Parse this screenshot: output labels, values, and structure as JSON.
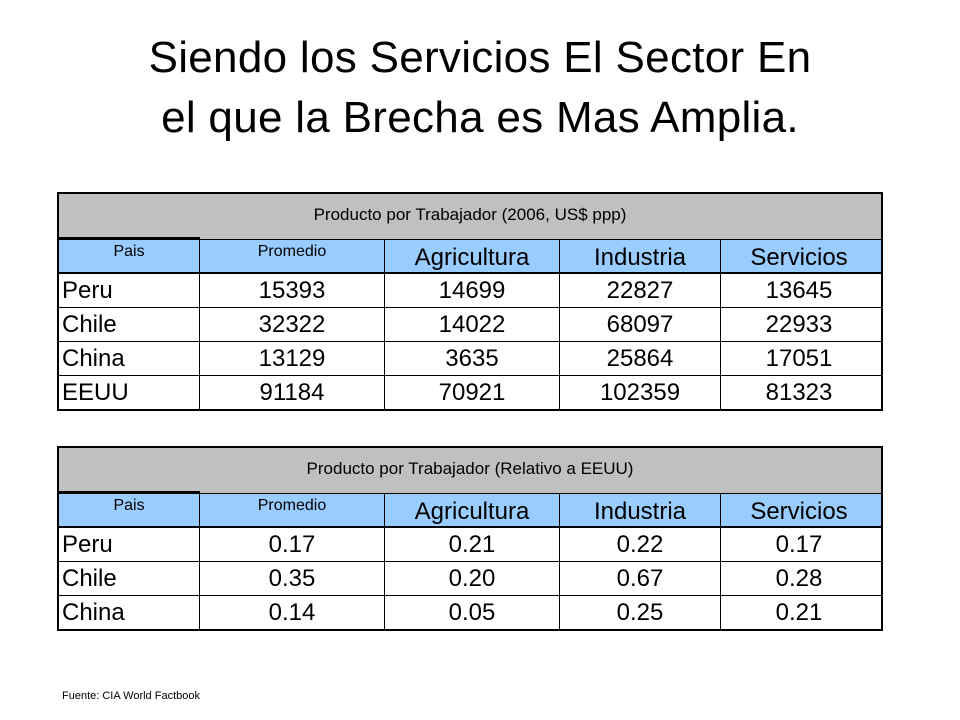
{
  "title": {
    "line1": "Siendo los Servicios El Sector En",
    "line2": "el que la Brecha es Mas Amplia."
  },
  "tables": [
    {
      "title": "Producto por Trabajador  (2006, US$ ppp)",
      "headers": [
        "Pais",
        "Promedio",
        "Agricultura",
        "Industria",
        "Servicios"
      ],
      "rows": [
        [
          "Peru",
          "15393",
          "14699",
          "22827",
          "13645"
        ],
        [
          "Chile",
          "32322",
          "14022",
          "68097",
          "22933"
        ],
        [
          "China",
          "13129",
          "3635",
          "25864",
          "17051"
        ],
        [
          "EEUU",
          "91184",
          "70921",
          "102359",
          "81323"
        ]
      ]
    },
    {
      "title": "Producto por Trabajador  (Relativo a EEUU)",
      "headers": [
        "Pais",
        "Promedio",
        "Agricultura",
        "Industria",
        "Servicios"
      ],
      "rows": [
        [
          "Peru",
          "0.17",
          "0.21",
          "0.22",
          "0.17"
        ],
        [
          "Chile",
          "0.35",
          "0.20",
          "0.67",
          "0.28"
        ],
        [
          "China",
          "0.14",
          "0.05",
          "0.25",
          "0.21"
        ]
      ]
    }
  ],
  "source": "Fuente: CIA World Factbook",
  "colors": {
    "table_title_bg": "#c0c0c0",
    "header_bg": "#99ccff"
  }
}
